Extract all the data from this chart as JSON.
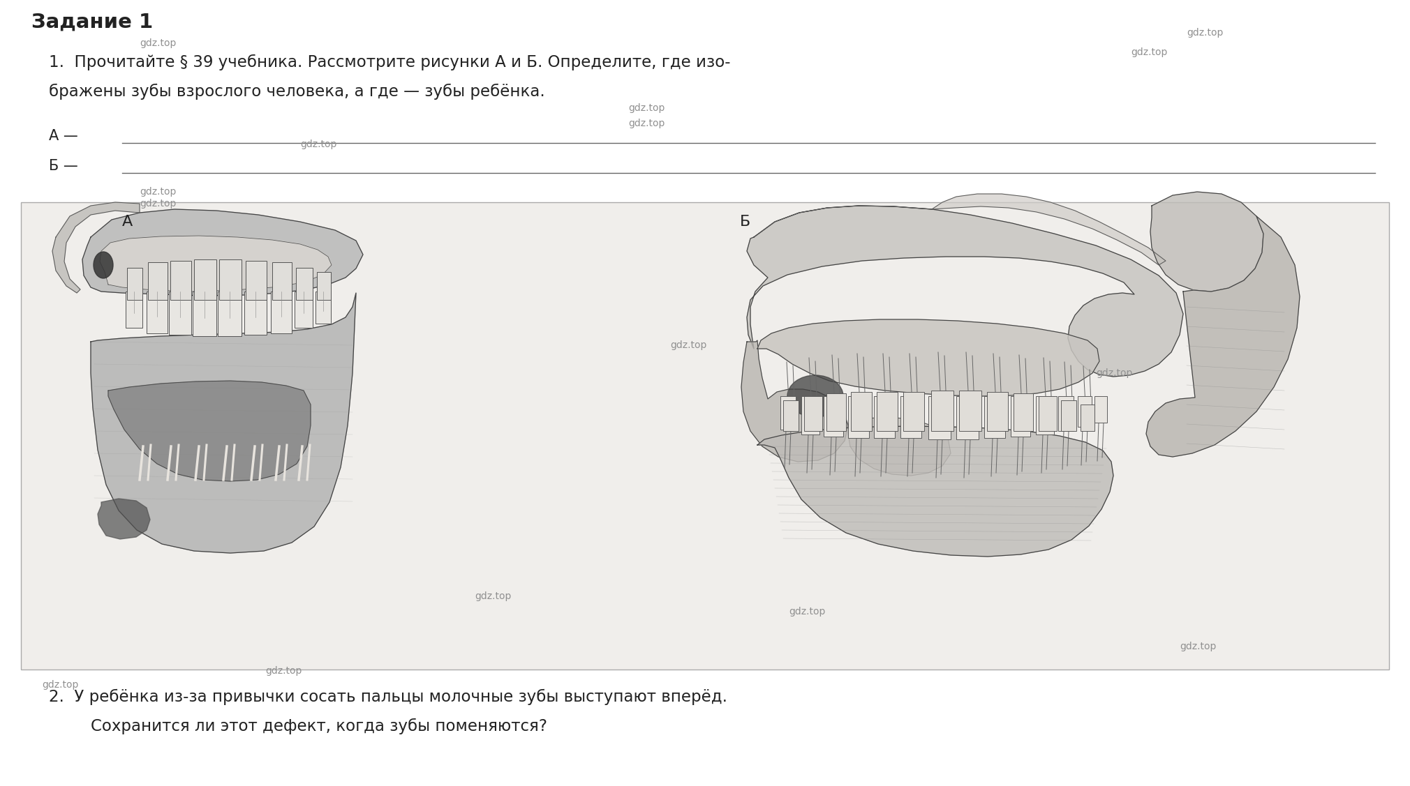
{
  "background_color": "#ffffff",
  "title": "Задание 1",
  "title_fontsize": 21,
  "task1_line1": "1.  Прочитайте § 39 учебника. Рассмотрите рисунки А и Б. Определите, где изо-",
  "task1_line2": "бражены зубы взрослого человека, а где — зубы ребёнка.",
  "task_fontsize": 16.5,
  "label_A": "А —",
  "label_B": "Б —",
  "label_fontsize": 15,
  "fig_label_A": "А",
  "fig_label_B": "Б",
  "fig_label_fontsize": 16,
  "watermark": "gdz.top",
  "wm_fontsize": 10,
  "wm_color": "#909090",
  "task2_line1": "2.  У ребёнка из-за привычки сосать пальцы молочные зубы выступают вперёд.",
  "task2_line2": "Сохранится ли этот дефект, когда зубы поменяются?",
  "task2_fontsize": 16.5,
  "box_facecolor": "#f0eeeb",
  "box_edgecolor": "#aaaaaa",
  "text_color": "#222222",
  "line_color": "#666666"
}
